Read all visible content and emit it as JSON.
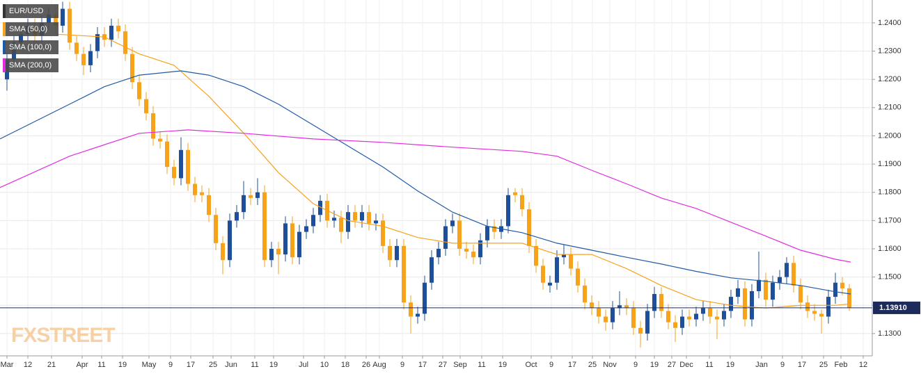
{
  "chart_data": {
    "type": "candlestick",
    "symbol": "EUR/USD",
    "watermark": "FXSTREET",
    "up_color": "#1f4f9a",
    "down_color": "#f7a21b",
    "grid": true,
    "xlim": [
      -1,
      124.3
    ],
    "ylim": [
      1.1221,
      1.2481
    ],
    "xticks": [
      {
        "value": 0,
        "label": "Mar"
      },
      {
        "value": 3,
        "label": "12"
      },
      {
        "value": 6.4,
        "label": "21"
      },
      {
        "value": 10.8,
        "label": "Apr"
      },
      {
        "value": 13.6,
        "label": "11"
      },
      {
        "value": 16.6,
        "label": "19"
      },
      {
        "value": 20.4,
        "label": "May"
      },
      {
        "value": 23.5,
        "label": "9"
      },
      {
        "value": 26.4,
        "label": "17"
      },
      {
        "value": 29.6,
        "label": "25"
      },
      {
        "value": 32.2,
        "label": "Jun"
      },
      {
        "value": 35.6,
        "label": "11"
      },
      {
        "value": 38.3,
        "label": "19"
      },
      {
        "value": 42.6,
        "label": "Jul"
      },
      {
        "value": 45.6,
        "label": "10"
      },
      {
        "value": 48.6,
        "label": "18"
      },
      {
        "value": 51.6,
        "label": "26"
      },
      {
        "value": 53.5,
        "label": "Aug"
      },
      {
        "value": 56.8,
        "label": "9"
      },
      {
        "value": 59.7,
        "label": "17"
      },
      {
        "value": 62.6,
        "label": "27"
      },
      {
        "value": 65.1,
        "label": "Sep"
      },
      {
        "value": 68.2,
        "label": "11"
      },
      {
        "value": 71.2,
        "label": "19"
      },
      {
        "value": 75.3,
        "label": "Oct"
      },
      {
        "value": 78.2,
        "label": "9"
      },
      {
        "value": 81.2,
        "label": "17"
      },
      {
        "value": 84.1,
        "label": "25"
      },
      {
        "value": 86.6,
        "label": "Nov"
      },
      {
        "value": 90.3,
        "label": "9"
      },
      {
        "value": 93,
        "label": "19"
      },
      {
        "value": 95.5,
        "label": "27"
      },
      {
        "value": 97.6,
        "label": "Dec"
      },
      {
        "value": 100.9,
        "label": "11"
      },
      {
        "value": 103.9,
        "label": "19"
      },
      {
        "value": 108.4,
        "label": "Jan"
      },
      {
        "value": 111.4,
        "label": "9"
      },
      {
        "value": 114.2,
        "label": "17"
      },
      {
        "value": 117.3,
        "label": "25"
      },
      {
        "value": 119.8,
        "label": "Feb"
      },
      {
        "value": 123,
        "label": "12"
      }
    ],
    "yticks": [
      {
        "value": 1.24,
        "label": "1.2400"
      },
      {
        "value": 1.23,
        "label": "1.2300"
      },
      {
        "value": 1.22,
        "label": "1.2200"
      },
      {
        "value": 1.21,
        "label": "1.2100"
      },
      {
        "value": 1.2,
        "label": "1.2000"
      },
      {
        "value": 1.19,
        "label": "1.1900"
      },
      {
        "value": 1.18,
        "label": "1.1800"
      },
      {
        "value": 1.17,
        "label": "1.1700"
      },
      {
        "value": 1.16,
        "label": "1.1600"
      },
      {
        "value": 1.15,
        "label": "1.1500"
      },
      {
        "value": 1.14,
        "label": "1.1400"
      },
      {
        "value": 1.13,
        "label": "1.1300"
      }
    ],
    "last_price": {
      "value": 1.1391,
      "label": "1.13910"
    },
    "candles": {
      "open": [
        1.22,
        1.227,
        1.233,
        1.236,
        1.239,
        1.2355,
        1.24,
        1.243,
        1.239,
        1.245,
        1.233,
        1.229,
        1.225,
        1.23,
        1.236,
        1.234,
        1.239,
        1.237,
        1.229,
        1.219,
        1.213,
        1.208,
        1.199,
        1.198,
        1.189,
        1.185,
        1.195,
        1.183,
        1.18,
        1.179,
        1.172,
        1.162,
        1.156,
        1.17,
        1.173,
        1.179,
        1.178,
        1.18,
        1.156,
        1.16,
        1.158,
        1.169,
        1.157,
        1.166,
        1.168,
        1.172,
        1.177,
        1.17,
        1.171,
        1.166,
        1.173,
        1.17,
        1.173,
        1.169,
        1.17,
        1.161,
        1.156,
        1.161,
        1.141,
        1.136,
        1.137,
        1.148,
        1.157,
        1.16,
        1.168,
        1.17,
        1.16,
        1.159,
        1.157,
        1.163,
        1.168,
        1.166,
        1.168,
        1.18,
        1.179,
        1.174,
        1.161,
        1.154,
        1.147,
        1.148,
        1.157,
        1.158,
        1.153,
        1.147,
        1.141,
        1.139,
        1.136,
        1.134,
        1.139,
        1.14,
        1.139,
        1.132,
        1.13,
        1.138,
        1.144,
        1.138,
        1.134,
        1.132,
        1.136,
        1.135,
        1.137,
        1.139,
        1.136,
        1.135,
        1.138,
        1.143,
        1.146,
        1.135,
        1.145,
        1.149,
        1.142,
        1.148,
        1.15,
        1.155,
        1.147,
        1.141,
        1.138,
        1.137,
        1.136,
        1.143,
        1.148,
        1.146
      ],
      "high": [
        1.2295,
        1.2355,
        1.2385,
        1.2415,
        1.2415,
        1.2425,
        1.2455,
        1.2455,
        1.2475,
        1.2475,
        1.2355,
        1.2315,
        1.2325,
        1.2385,
        1.2385,
        1.2415,
        1.2415,
        1.2395,
        1.2315,
        1.2215,
        1.2155,
        1.2105,
        1.2015,
        1.2005,
        1.1915,
        1.1995,
        1.1975,
        1.1855,
        1.1825,
        1.1815,
        1.1745,
        1.1645,
        1.1725,
        1.1755,
        1.184,
        1.1815,
        1.185,
        1.1825,
        1.1625,
        1.1625,
        1.1715,
        1.1715,
        1.1685,
        1.1705,
        1.1745,
        1.179,
        1.1795,
        1.1735,
        1.1735,
        1.1755,
        1.1755,
        1.1755,
        1.1755,
        1.1725,
        1.1725,
        1.1635,
        1.1635,
        1.1635,
        1.1435,
        1.1395,
        1.1505,
        1.1595,
        1.1625,
        1.1705,
        1.1725,
        1.1725,
        1.1625,
        1.1615,
        1.1655,
        1.1705,
        1.1705,
        1.1705,
        1.1815,
        1.1815,
        1.1815,
        1.1765,
        1.1635,
        1.1565,
        1.1505,
        1.1595,
        1.1615,
        1.1605,
        1.1555,
        1.1495,
        1.1435,
        1.1415,
        1.1385,
        1.1415,
        1.145,
        1.1425,
        1.1415,
        1.1345,
        1.1405,
        1.1465,
        1.1465,
        1.1405,
        1.1365,
        1.1385,
        1.1385,
        1.1395,
        1.1415,
        1.1415,
        1.1385,
        1.1405,
        1.1455,
        1.149,
        1.1485,
        1.1475,
        1.159,
        1.1515,
        1.1505,
        1.1525,
        1.157,
        1.1575,
        1.1495,
        1.1435,
        1.1405,
        1.1385,
        1.1455,
        1.1515,
        1.15,
        1.1475
      ],
      "low": [
        1.216,
        1.2245,
        1.2305,
        1.2335,
        1.233,
        1.233,
        1.2375,
        1.2365,
        1.2365,
        1.2305,
        1.2265,
        1.2215,
        1.2225,
        1.2275,
        1.2315,
        1.2315,
        1.2345,
        1.2265,
        1.2165,
        1.2105,
        1.2055,
        1.1965,
        1.1955,
        1.1865,
        1.1825,
        1.1825,
        1.1805,
        1.1765,
        1.1765,
        1.1695,
        1.1595,
        1.151,
        1.1535,
        1.1675,
        1.1705,
        1.1755,
        1.1755,
        1.1535,
        1.1535,
        1.151,
        1.1555,
        1.1545,
        1.1545,
        1.1635,
        1.1655,
        1.1695,
        1.1675,
        1.1675,
        1.162,
        1.1635,
        1.1675,
        1.1675,
        1.1665,
        1.1665,
        1.1585,
        1.1535,
        1.1535,
        1.1385,
        1.13,
        1.1335,
        1.1345,
        1.1455,
        1.1545,
        1.1575,
        1.1655,
        1.1575,
        1.1565,
        1.1545,
        1.1545,
        1.1605,
        1.1635,
        1.1635,
        1.1655,
        1.1765,
        1.1715,
        1.1585,
        1.1515,
        1.1455,
        1.1445,
        1.1455,
        1.1545,
        1.1505,
        1.1445,
        1.1385,
        1.1365,
        1.1335,
        1.131,
        1.1315,
        1.1365,
        1.1365,
        1.1295,
        1.125,
        1.1275,
        1.1355,
        1.1355,
        1.1315,
        1.127,
        1.1295,
        1.1325,
        1.1325,
        1.1345,
        1.1335,
        1.128,
        1.1325,
        1.1355,
        1.1405,
        1.1325,
        1.1325,
        1.1425,
        1.1395,
        1.1395,
        1.1455,
        1.1475,
        1.1445,
        1.1385,
        1.1355,
        1.1345,
        1.13,
        1.1335,
        1.1405,
        1.1435,
        1.138
      ],
      "close": [
        1.227,
        1.233,
        1.236,
        1.239,
        1.2355,
        1.24,
        1.243,
        1.239,
        1.245,
        1.233,
        1.229,
        1.225,
        1.23,
        1.236,
        1.234,
        1.239,
        1.237,
        1.229,
        1.219,
        1.213,
        1.208,
        1.199,
        1.198,
        1.189,
        1.185,
        1.195,
        1.183,
        1.179,
        1.179,
        1.172,
        1.162,
        1.156,
        1.17,
        1.173,
        1.179,
        1.178,
        1.18,
        1.156,
        1.16,
        1.158,
        1.169,
        1.157,
        1.166,
        1.168,
        1.172,
        1.177,
        1.17,
        1.171,
        1.166,
        1.173,
        1.17,
        1.173,
        1.169,
        1.17,
        1.161,
        1.156,
        1.161,
        1.141,
        1.136,
        1.137,
        1.148,
        1.157,
        1.16,
        1.168,
        1.17,
        1.16,
        1.159,
        1.157,
        1.163,
        1.168,
        1.166,
        1.168,
        1.179,
        1.179,
        1.174,
        1.161,
        1.154,
        1.148,
        1.148,
        1.157,
        1.158,
        1.153,
        1.147,
        1.141,
        1.139,
        1.136,
        1.134,
        1.139,
        1.14,
        1.139,
        1.132,
        1.13,
        1.138,
        1.144,
        1.138,
        1.134,
        1.132,
        1.136,
        1.135,
        1.137,
        1.139,
        1.136,
        1.135,
        1.138,
        1.143,
        1.146,
        1.135,
        1.145,
        1.149,
        1.142,
        1.148,
        1.15,
        1.155,
        1.147,
        1.141,
        1.138,
        1.137,
        1.136,
        1.143,
        1.148,
        1.146,
        1.1391
      ]
    },
    "series": [
      {
        "name": "SMA (50,0)",
        "color": "#f7a21b",
        "x": [
          7,
          14,
          19,
          24,
          29,
          34,
          39,
          44,
          49,
          54,
          59,
          64,
          69,
          74,
          79,
          84,
          89,
          94,
          99,
          104,
          109,
          114,
          119,
          121.2
        ],
        "values": [
          1.236,
          1.235,
          1.229,
          1.225,
          1.214,
          1.201,
          1.187,
          1.176,
          1.17,
          1.168,
          1.164,
          1.162,
          1.162,
          1.162,
          1.158,
          1.158,
          1.153,
          1.147,
          1.142,
          1.14,
          1.139,
          1.14,
          1.14,
          1.1405
        ]
      },
      {
        "name": "SMA (100,0)",
        "color": "#1f5aa6",
        "x": [
          -1,
          9,
          14,
          19,
          25,
          29,
          34,
          39,
          44,
          49,
          54,
          59,
          64,
          69,
          74,
          79,
          84,
          89,
          94,
          99,
          104,
          109,
          114,
          119,
          121.2
        ],
        "values": [
          1.1989,
          1.2112,
          1.2174,
          1.2215,
          1.223,
          1.2215,
          1.2174,
          1.2112,
          1.2038,
          1.1964,
          1.189,
          1.1805,
          1.173,
          1.168,
          1.1657,
          1.162,
          1.1595,
          1.157,
          1.1546,
          1.152,
          1.1497,
          1.1485,
          1.147,
          1.1448,
          1.144
        ]
      },
      {
        "name": "SMA (200,0)",
        "color": "#e22be0",
        "x": [
          -1,
          9,
          19,
          26,
          34,
          44,
          54,
          64,
          74,
          79,
          84,
          89,
          94,
          99,
          104,
          109,
          114,
          119,
          121.2
        ],
        "values": [
          1.1817,
          1.1928,
          1.2009,
          1.2021,
          1.2009,
          1.1989,
          1.1977,
          1.196,
          1.1945,
          1.1928,
          1.1878,
          1.183,
          1.178,
          1.1743,
          1.1694,
          1.1645,
          1.1595,
          1.1563,
          1.1553
        ]
      }
    ]
  }
}
